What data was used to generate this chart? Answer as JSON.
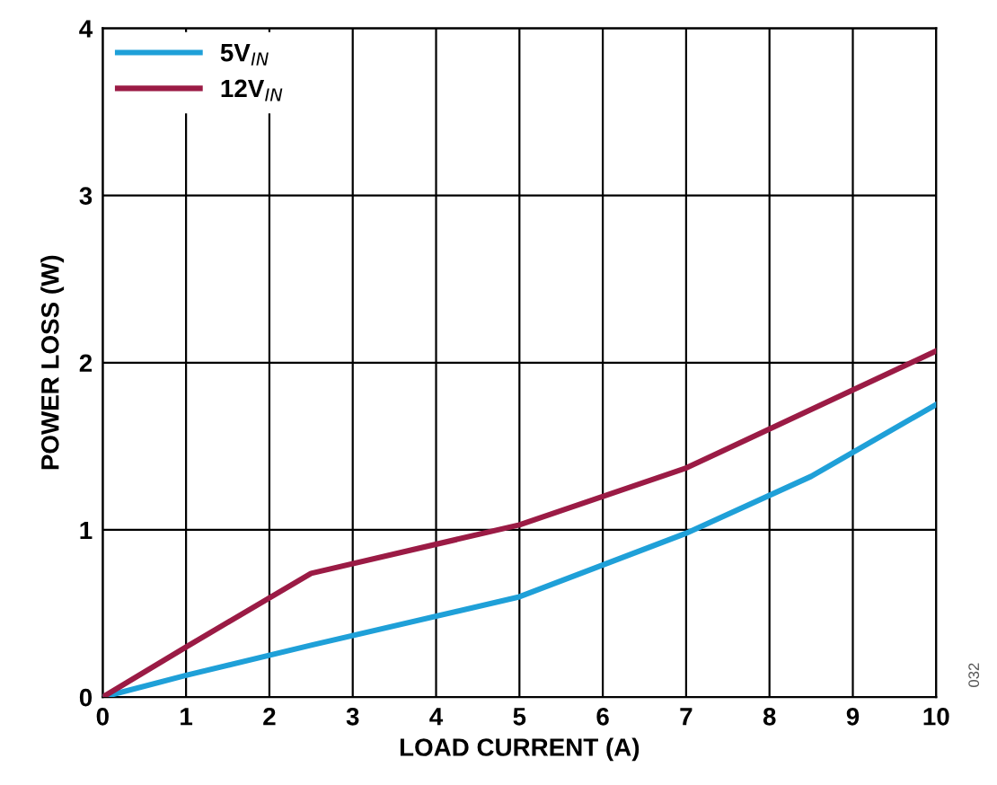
{
  "chart_data": {
    "type": "line",
    "xlabel": "LOAD CURRENT (A)",
    "ylabel": "POWER LOSS (W)",
    "xlim": [
      0,
      10
    ],
    "ylim": [
      0,
      4
    ],
    "xticks": [
      0,
      1,
      2,
      3,
      4,
      5,
      6,
      7,
      8,
      9,
      10
    ],
    "yticks": [
      0,
      1,
      2,
      3,
      4
    ],
    "grid": true,
    "legend": "top left",
    "line_style": "solid",
    "marker": "none",
    "annotations": [
      "032"
    ],
    "series": [
      {
        "name": "5V$_{IN}$",
        "color": "#1fa0d8",
        "x": [
          0,
          1,
          2.5,
          5,
          7,
          8.5,
          10
        ],
        "values": [
          0,
          0.13,
          0.31,
          0.6,
          0.98,
          1.32,
          1.75
        ]
      },
      {
        "name": "12V$_{IN}$",
        "color": "#9b1b45",
        "x": [
          0,
          1,
          2.5,
          5,
          7,
          10
        ],
        "values": [
          0,
          0.3,
          0.74,
          1.03,
          1.37,
          2.07
        ]
      }
    ]
  }
}
